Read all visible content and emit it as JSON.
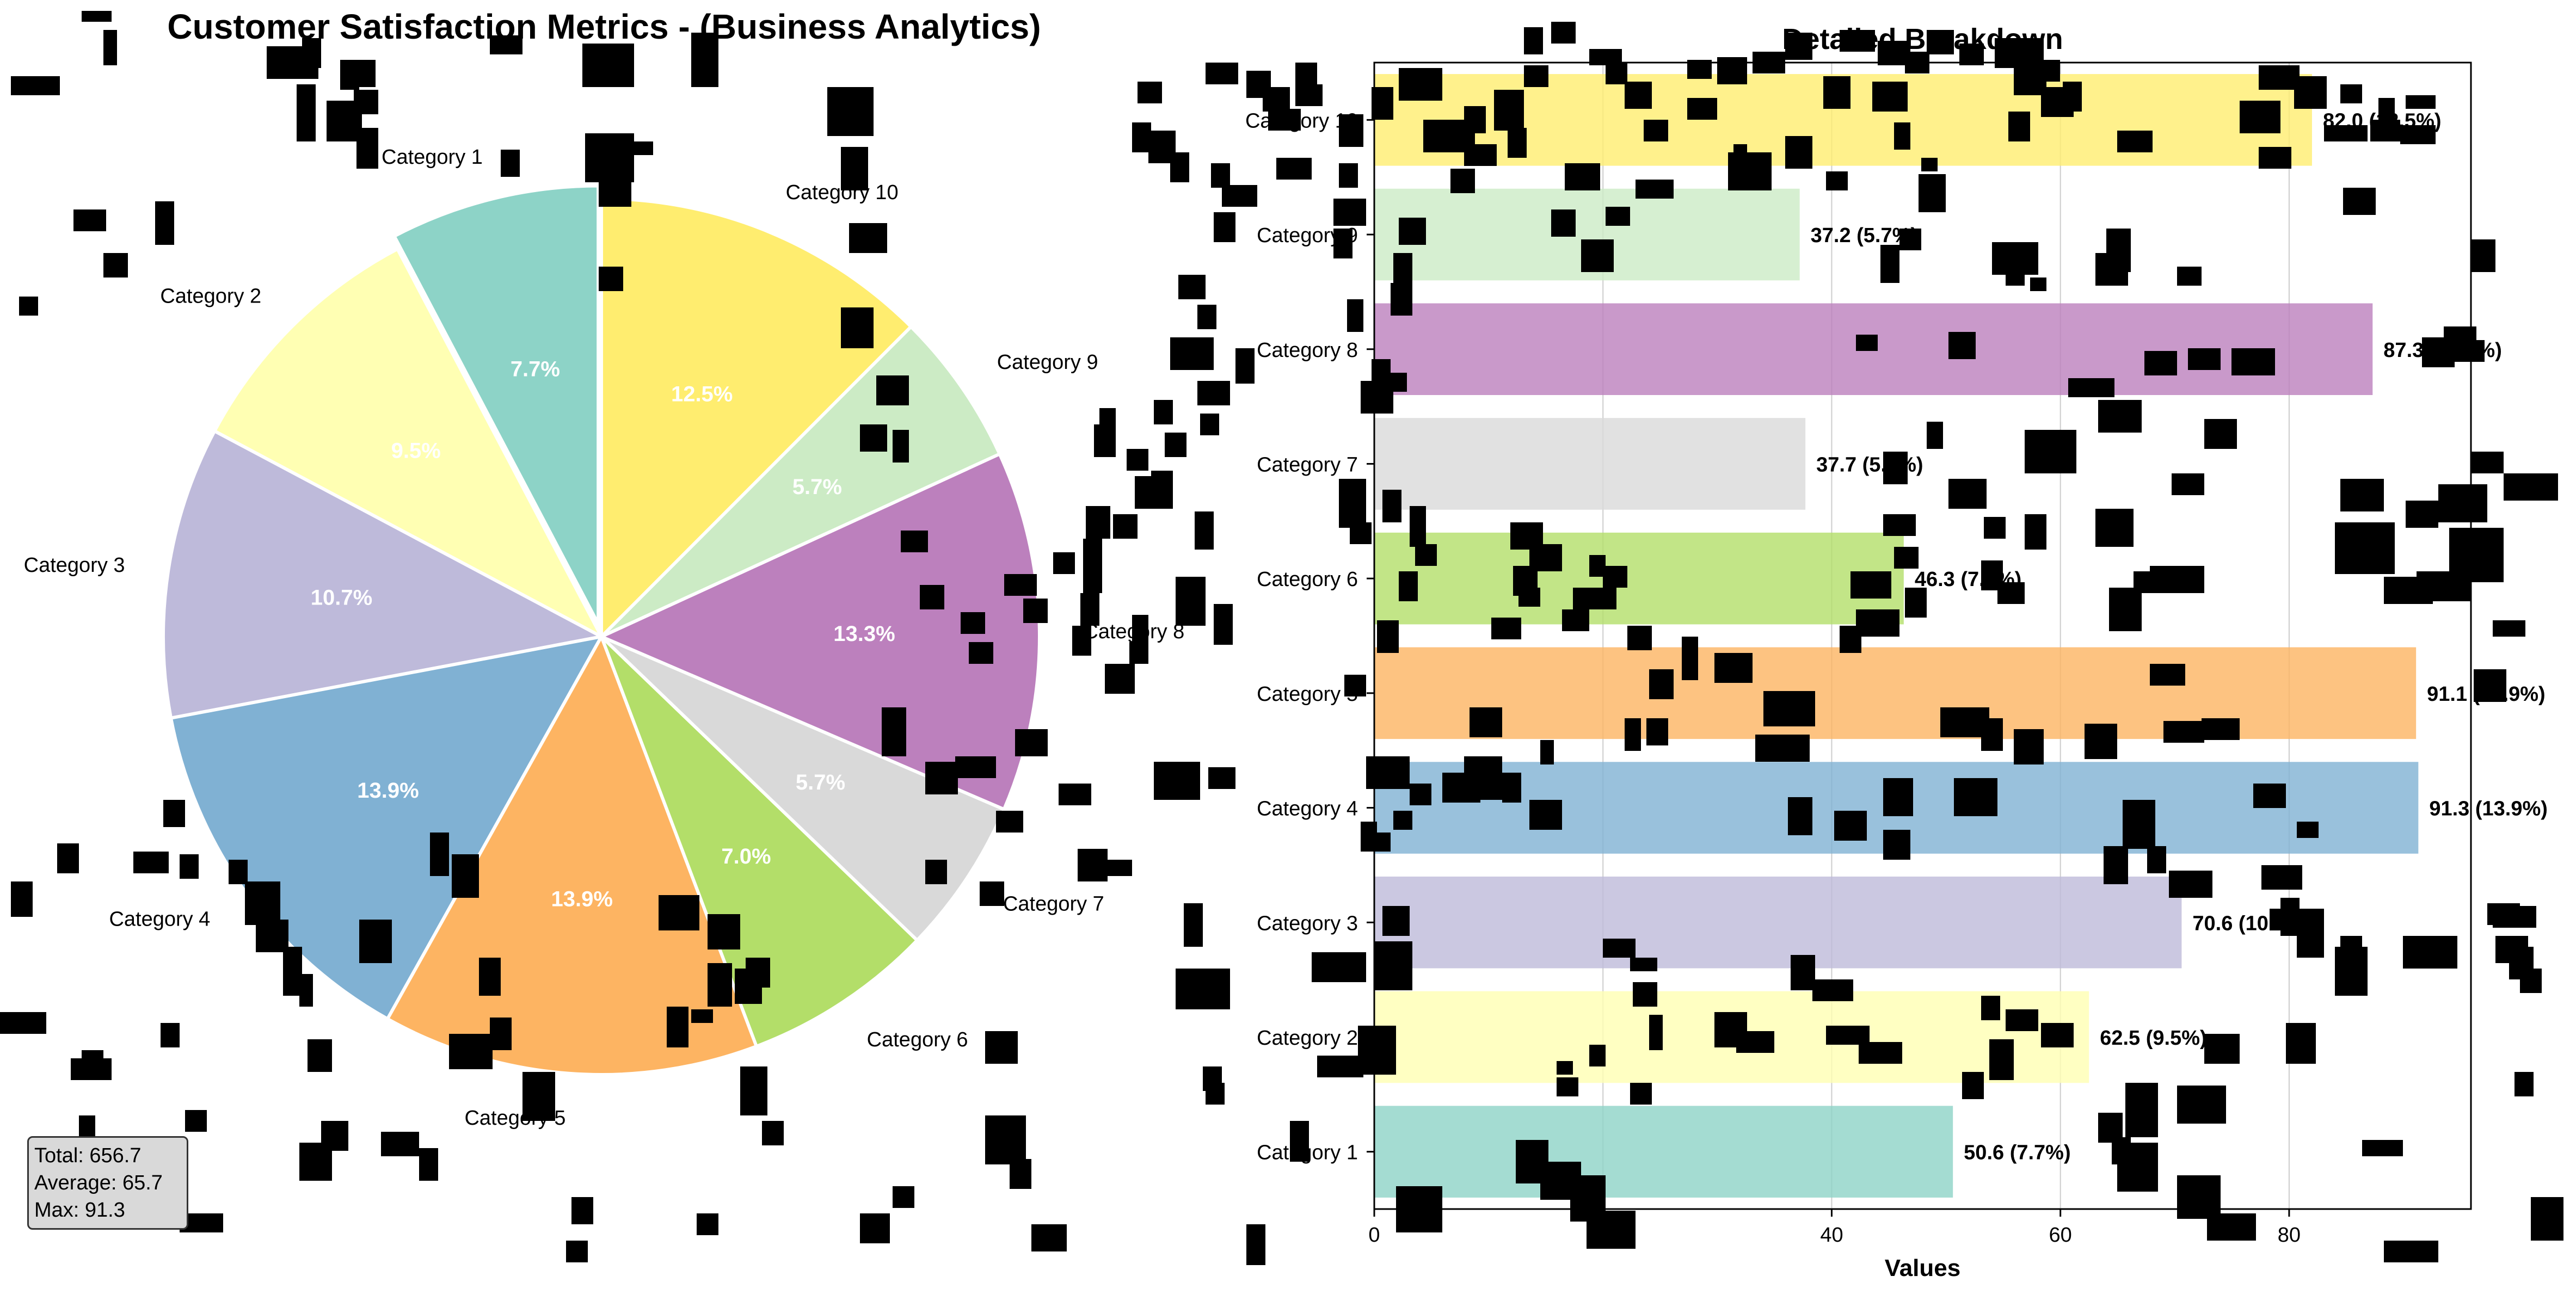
{
  "title": "Customer Satisfaction Metrics - (Business Analytics)",
  "stats": {
    "total": "Total: 656.7",
    "average": "Average: 65.7",
    "max": "Max: 91.3"
  },
  "chart_data": [
    {
      "type": "pie",
      "title": "",
      "categories": [
        "Category 1",
        "Category 2",
        "Category 3",
        "Category 4",
        "Category 5",
        "Category 6",
        "Category 7",
        "Category 8",
        "Category 9",
        "Category 10"
      ],
      "values": [
        50.6,
        62.5,
        70.6,
        91.3,
        91.1,
        46.3,
        37.7,
        87.3,
        37.2,
        82.0
      ],
      "percent_labels": [
        "7.7%",
        "9.5%",
        "10.7%",
        "13.9%",
        "13.9%",
        "7.0%",
        "5.7%",
        "13.3%",
        "5.7%",
        "12.5%"
      ],
      "colors": [
        "#8dd3c7",
        "#ffffb3",
        "#bebada",
        "#80b1d3",
        "#fdb462",
        "#b3de69",
        "#d9d9d9",
        "#bc80bd",
        "#ccebc5",
        "#ffed6f"
      ],
      "start_angle_deg": 90,
      "direction": "counterclockwise",
      "explode": [
        1,
        0,
        0,
        0,
        0,
        0,
        0,
        0,
        0,
        0
      ]
    },
    {
      "type": "bar",
      "orientation": "horizontal",
      "title": "Detailed Breakdown",
      "xlabel": "Values",
      "ylabel": "",
      "categories": [
        "Category 1",
        "Category 2",
        "Category 3",
        "Category 4",
        "Category 5",
        "Category 6",
        "Category 7",
        "Category 8",
        "Category 9",
        "Category 10"
      ],
      "values": [
        50.6,
        62.5,
        70.6,
        91.3,
        91.1,
        46.3,
        37.7,
        87.3,
        37.2,
        82.0
      ],
      "value_labels": [
        "50.6 (7.7%)",
        "62.5 (9.5%)",
        "70.6 (10.7%)",
        "91.3 (13.9%)",
        "91.1 (13.9%)",
        "46.3 (7.0%)",
        "37.7 (5.7%)",
        "87.3 (13.3%)",
        "37.2 (5.7%)",
        "82.0 (12.5%)"
      ],
      "colors": [
        "#8dd3c7",
        "#ffffb3",
        "#bebada",
        "#80b1d3",
        "#fdb462",
        "#b3de69",
        "#d9d9d9",
        "#bc80bd",
        "#ccebc5",
        "#ffed6f"
      ],
      "xlim": [
        0,
        95.9
      ],
      "xticks": [
        0,
        20,
        40,
        60,
        80
      ],
      "grid": "x"
    }
  ]
}
